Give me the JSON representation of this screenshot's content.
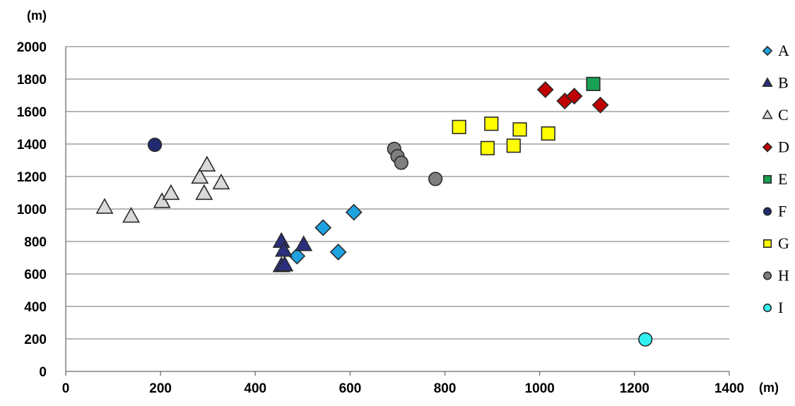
{
  "chart_data": {
    "type": "scatter",
    "title": "",
    "xlabel": "(m)",
    "ylabel": "(m)",
    "xlim": [
      0,
      1400
    ],
    "ylim": [
      0,
      2000
    ],
    "x_ticks": [
      0,
      200,
      400,
      600,
      800,
      1000,
      1200,
      1400
    ],
    "y_ticks": [
      0,
      200,
      400,
      600,
      800,
      1000,
      1200,
      1400,
      1600,
      1800,
      2000
    ],
    "grid": "horizontal",
    "legend_position": "right",
    "series": [
      {
        "name": "A",
        "marker": "diamond",
        "color": "#1fa3e0",
        "points": [
          [
            488,
            710
          ],
          [
            543,
            885
          ],
          [
            575,
            735
          ],
          [
            608,
            980
          ]
        ]
      },
      {
        "name": "B",
        "marker": "triangle",
        "color": "#2b2f7e",
        "points": [
          [
            455,
            800
          ],
          [
            460,
            745
          ],
          [
            502,
            780
          ],
          [
            455,
            650
          ],
          [
            462,
            655
          ]
        ]
      },
      {
        "name": "C",
        "marker": "triangle",
        "color": "#d9d9d9",
        "points": [
          [
            82,
            1010
          ],
          [
            138,
            955
          ],
          [
            203,
            1045
          ],
          [
            222,
            1095
          ],
          [
            283,
            1195
          ],
          [
            298,
            1270
          ],
          [
            292,
            1095
          ],
          [
            328,
            1160
          ]
        ]
      },
      {
        "name": "D",
        "marker": "diamond",
        "color": "#c00000",
        "points": [
          [
            1012,
            1735
          ],
          [
            1053,
            1665
          ],
          [
            1073,
            1695
          ],
          [
            1128,
            1640
          ]
        ]
      },
      {
        "name": "E",
        "marker": "square",
        "color": "#19a153",
        "points": [
          [
            1113,
            1770
          ]
        ]
      },
      {
        "name": "F",
        "marker": "circle",
        "color": "#1f2a70",
        "points": [
          [
            188,
            1395
          ]
        ]
      },
      {
        "name": "G",
        "marker": "square",
        "color": "#ffff00",
        "points": [
          [
            830,
            1505
          ],
          [
            898,
            1525
          ],
          [
            890,
            1375
          ],
          [
            945,
            1390
          ],
          [
            958,
            1490
          ],
          [
            1018,
            1465
          ]
        ]
      },
      {
        "name": "H",
        "marker": "circle",
        "color": "#7f7f7f",
        "points": [
          [
            693,
            1370
          ],
          [
            700,
            1325
          ],
          [
            708,
            1285
          ],
          [
            780,
            1185
          ]
        ]
      },
      {
        "name": "I",
        "marker": "circle",
        "color": "#33f0f0",
        "points": [
          [
            1223,
            197
          ]
        ]
      }
    ]
  }
}
